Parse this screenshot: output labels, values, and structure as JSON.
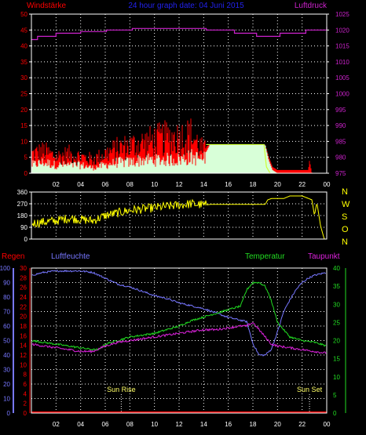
{
  "title": "24 hour graph date: 04 Juni 2015",
  "colors": {
    "background": "#000000",
    "frame": "#ffffff",
    "grid": "#ffffff",
    "wind_label": "#ff0000",
    "gust": "#ff0000",
    "wind_avg": "#d8ffd8",
    "pressure": "#cc22cc",
    "title": "#2222ee",
    "direction": "#ffff00",
    "rain": "#ff0000",
    "humidity": "#7777ff",
    "temperature": "#22dd22",
    "dewpoint": "#dd22dd",
    "sun": "#ffff66"
  },
  "chart_data": [
    {
      "type": "area",
      "panel": "wind-pressure",
      "title": "24 hour graph date: 04 Juni 2015",
      "left_axis_label": "Windstärke",
      "right_axis_label": "Luftdruck",
      "x_tick_labels": [
        "02",
        "04",
        "06",
        "08",
        "10",
        "12",
        "14",
        "16",
        "18",
        "20",
        "22",
        "00"
      ],
      "ylim_left": [
        0,
        50
      ],
      "ylim_right": [
        975,
        1025
      ],
      "yticks_left": [
        0,
        5,
        10,
        15,
        20,
        25,
        30,
        35,
        40,
        45,
        50
      ],
      "yticks_right": [
        975,
        980,
        985,
        990,
        995,
        1000,
        1005,
        1010,
        1015,
        1020,
        1025
      ],
      "grid": true,
      "series": [
        {
          "name": "Windstärke",
          "style": "gust",
          "x": [
            0,
            1,
            2,
            3,
            4,
            5,
            6,
            7,
            8,
            9,
            10,
            11,
            12,
            13,
            14,
            14.5,
            18.5,
            19.0,
            19.3,
            19.6,
            20,
            22,
            22.5,
            22.6,
            22.8,
            24
          ],
          "y": [
            7,
            8,
            6,
            7,
            6,
            5,
            7,
            9,
            10,
            11,
            12,
            13,
            13,
            14,
            8,
            9,
            9,
            9,
            5,
            2,
            1,
            1,
            1,
            4,
            0,
            0
          ]
        },
        {
          "name": "Windstärke Mittel",
          "style": "average",
          "x": [
            0,
            1,
            2,
            3,
            4,
            5,
            6,
            7,
            8,
            9,
            10,
            11,
            12,
            13,
            14,
            14.5,
            18.5,
            19.0,
            19.3,
            19.6,
            20,
            24
          ],
          "y": [
            3,
            4,
            3,
            3,
            3,
            2,
            3,
            4,
            4,
            5,
            5,
            5,
            5,
            6,
            5,
            9,
            9,
            9,
            4,
            1,
            0,
            0
          ]
        },
        {
          "name": "Luftdruck",
          "axis": "right",
          "x": [
            0,
            0.5,
            2,
            4,
            6.1,
            8.2,
            14.2,
            16.5,
            18.3,
            20.2,
            22.3,
            24
          ],
          "y": [
            1017,
            1018,
            1019,
            1019.5,
            1020,
            1020.5,
            1020,
            1019,
            1018,
            1019,
            1020,
            1021
          ]
        }
      ]
    },
    {
      "type": "line",
      "panel": "wind-direction",
      "right_axis_letters": [
        "N",
        "W",
        "S",
        "O",
        "N"
      ],
      "ylim": [
        0,
        360
      ],
      "yticks": [
        0,
        90,
        180,
        270,
        360
      ],
      "grid": true,
      "series": [
        {
          "name": "Windrichtung",
          "x": [
            0,
            1,
            2,
            3,
            4,
            5,
            6,
            7,
            8,
            9,
            10,
            11,
            12,
            13,
            14,
            14.5,
            19,
            19.2,
            19.5,
            20.5,
            21,
            22,
            22.8,
            23,
            23.2,
            23.5,
            23.8,
            24
          ],
          "y": [
            120,
            130,
            140,
            160,
            150,
            140,
            180,
            200,
            220,
            230,
            240,
            250,
            260,
            270,
            260,
            265,
            265,
            300,
            310,
            310,
            330,
            330,
            300,
            180,
            280,
            100,
            0,
            0
          ]
        }
      ]
    },
    {
      "type": "line",
      "panel": "rain-humidity-temperature",
      "labels": {
        "rain": "Regen",
        "humidity": "Luftfeuchte",
        "temperature": "Temperatur",
        "dewpoint": "Taupunkt"
      },
      "x_tick_labels": [
        "02",
        "04",
        "06",
        "08",
        "10",
        "12",
        "14",
        "16",
        "18",
        "20",
        "22",
        "00"
      ],
      "ylim_humidity": [
        0,
        100
      ],
      "yticks_humidity": [
        0,
        10,
        20,
        30,
        40,
        50,
        60,
        70,
        80,
        90,
        100
      ],
      "ylim_rain": [
        0,
        30
      ],
      "yticks_rain": [
        0,
        2,
        4,
        6,
        8,
        10,
        12,
        14,
        16,
        18,
        20,
        22,
        24,
        26,
        28,
        30
      ],
      "ylim_temperature": [
        0,
        40
      ],
      "yticks_temperature": [
        0,
        5,
        10,
        15,
        20,
        25,
        30,
        35,
        40
      ],
      "grid": true,
      "sun": {
        "rise_label": "Sun Rise",
        "rise_hour": 7.3,
        "set_label": "Sun Set",
        "set_hour": 22.6
      },
      "series": [
        {
          "name": "Luftfeuchte",
          "axis": "humidity",
          "x": [
            0,
            1,
            2,
            3,
            4,
            5,
            6,
            7,
            8,
            9,
            10,
            11,
            12,
            13,
            14,
            15,
            16,
            17,
            17.5,
            18,
            18.5,
            19,
            19.5,
            20,
            20.5,
            21,
            21.5,
            22,
            22.5,
            23,
            24
          ],
          "y": [
            95,
            97,
            98,
            98,
            98,
            97,
            93,
            89,
            87,
            84,
            81,
            79,
            76,
            74,
            72,
            69,
            66,
            64,
            63,
            48,
            40,
            40,
            44,
            56,
            70,
            78,
            85,
            90,
            93,
            95,
            97
          ]
        },
        {
          "name": "Temperatur",
          "axis": "temperature",
          "x": [
            0,
            1,
            2,
            3,
            4,
            5,
            5.5,
            6,
            7,
            8,
            9,
            10,
            11,
            12,
            13,
            14,
            15,
            16,
            17,
            17.5,
            18,
            18.5,
            19,
            19.5,
            20,
            21,
            22,
            23,
            24
          ],
          "y": [
            20,
            19.5,
            19,
            18.5,
            18,
            17.5,
            17.5,
            19,
            20,
            21,
            21.5,
            22,
            23,
            24,
            25.5,
            26.5,
            27.5,
            28.5,
            29.5,
            34,
            36,
            36,
            35,
            31,
            25,
            21,
            20,
            19.5,
            18.5
          ]
        },
        {
          "name": "Taupunkt",
          "axis": "temperature",
          "x": [
            0,
            1,
            2,
            3,
            4,
            5,
            6,
            7,
            8,
            9,
            10,
            11,
            12,
            13,
            14,
            15,
            16,
            17,
            17.5,
            18,
            18.5,
            19,
            19.5,
            20,
            21,
            22,
            23,
            24
          ],
          "y": [
            19,
            18.5,
            18,
            17.5,
            17,
            17,
            18.5,
            19.5,
            20,
            20.5,
            21,
            21.5,
            22,
            22.5,
            23,
            23,
            23.5,
            24,
            24,
            25,
            23,
            21,
            19,
            18.5,
            18,
            17.5,
            17,
            16.5
          ]
        },
        {
          "name": "Regen",
          "axis": "rain",
          "x": [
            0,
            24
          ],
          "y": [
            0,
            0
          ]
        }
      ]
    }
  ]
}
